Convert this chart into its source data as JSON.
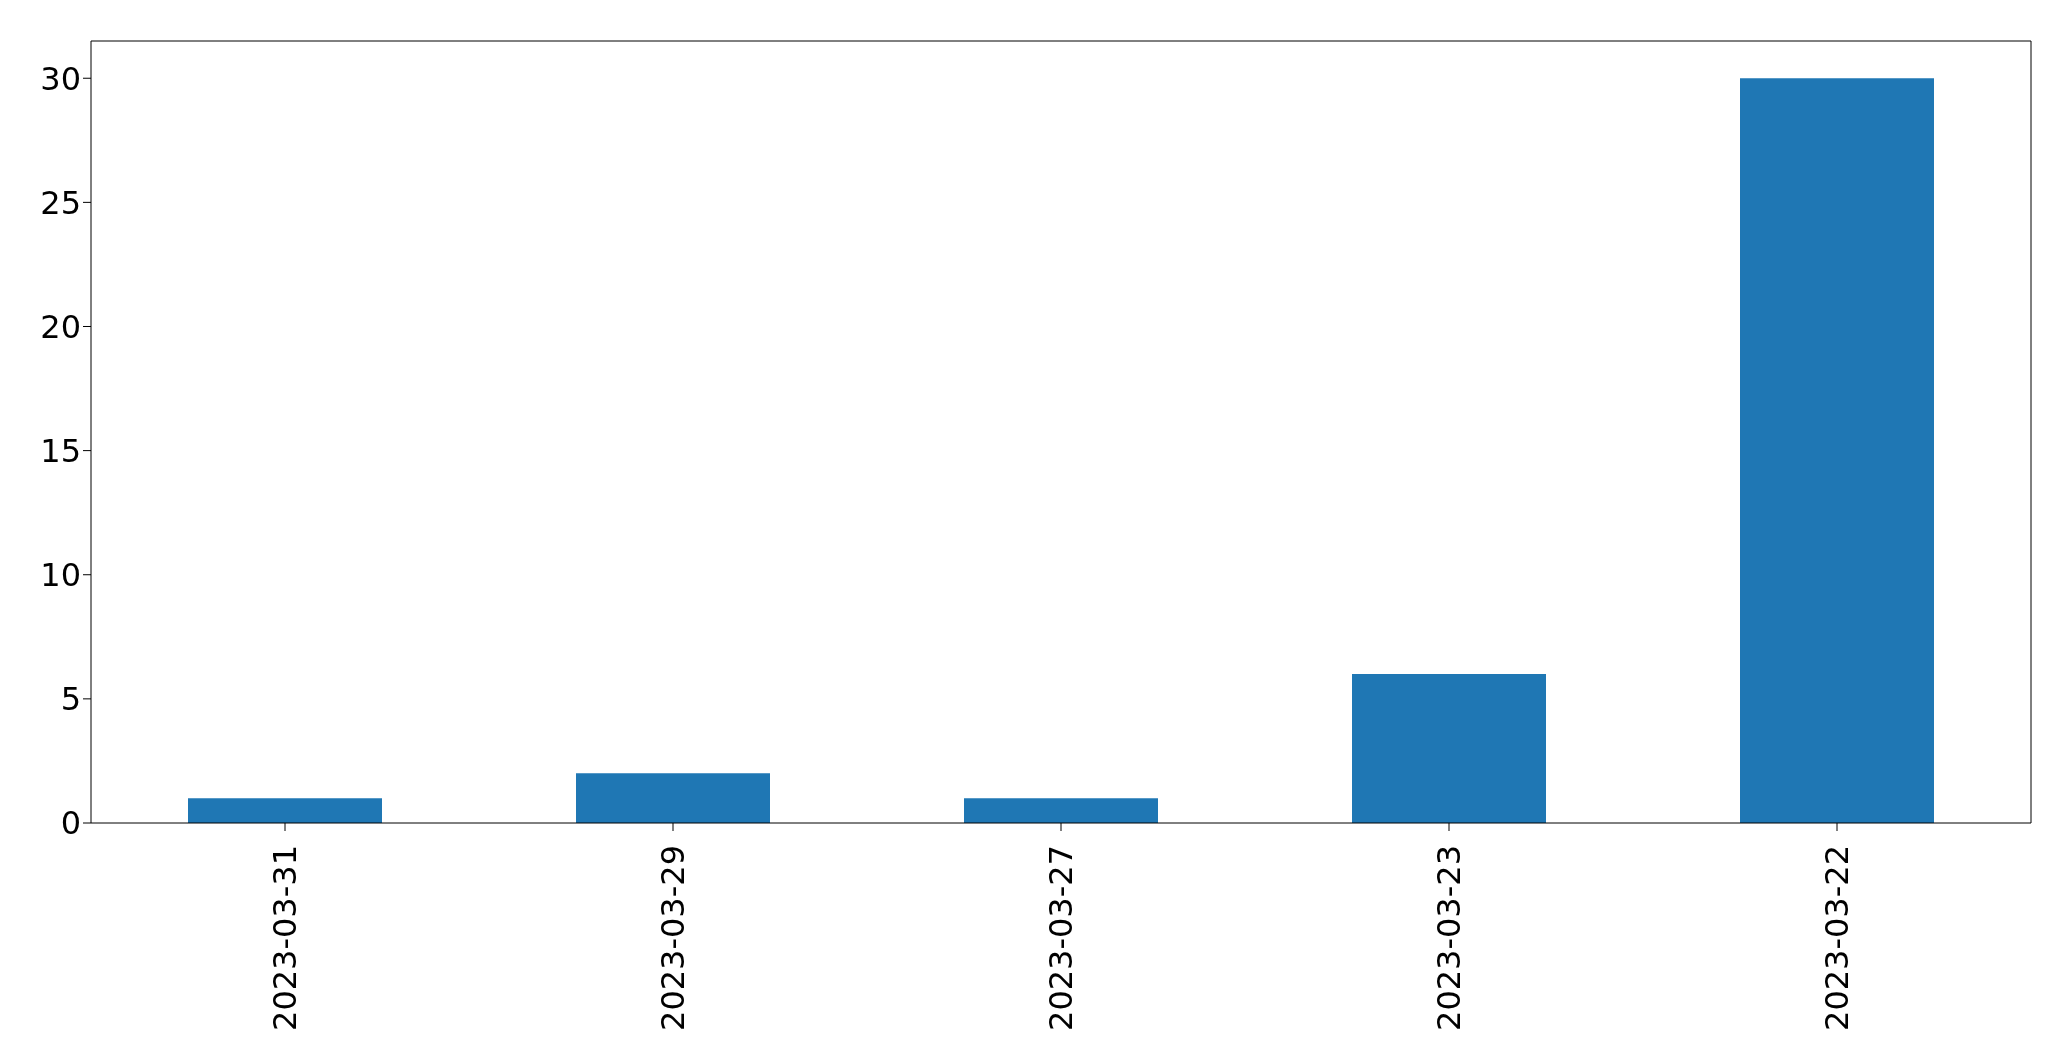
{
  "chart_data": {
    "type": "bar",
    "categories": [
      "2023-03-31",
      "2023-03-29",
      "2023-03-27",
      "2023-03-23",
      "2023-03-22"
    ],
    "values": [
      1,
      2,
      1,
      6,
      30
    ],
    "color": "#1f77b4",
    "ylim": [
      0,
      31.5
    ],
    "yticks": [
      0,
      5,
      10,
      15,
      20,
      25,
      30
    ],
    "grid": false,
    "legend": false
  }
}
